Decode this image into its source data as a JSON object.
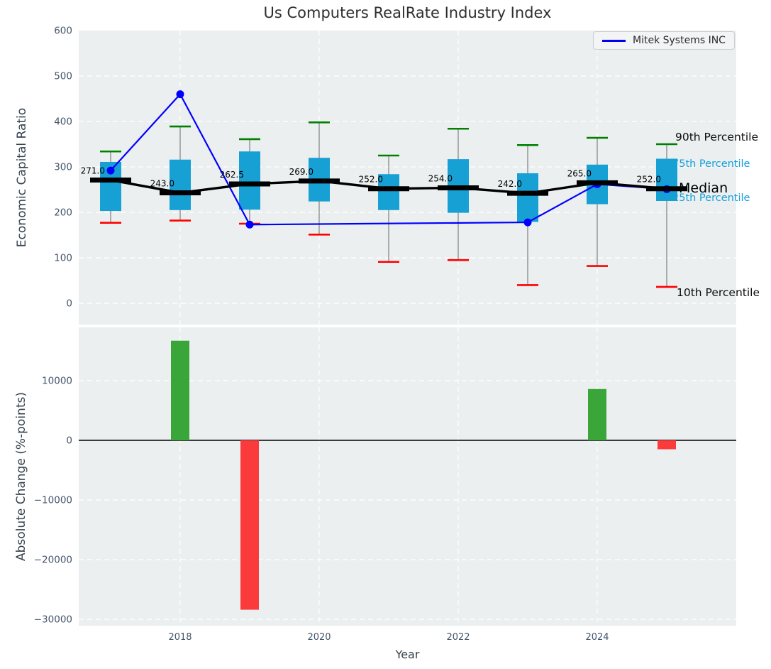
{
  "title": "Us Computers RealRate Industry Index",
  "legend": {
    "label": "Mitek Systems INC"
  },
  "axes": {
    "top": {
      "ylabel": "Economic Capital Ratio",
      "ytick_values": [
        600,
        500,
        400,
        300,
        200,
        100,
        0
      ],
      "ytick_labels": [
        "600",
        "500",
        "400",
        "300",
        "200",
        "100",
        "0"
      ]
    },
    "bottom": {
      "ylabel": "Absolute Change (%-points)",
      "ytick_values": [
        10000,
        0,
        -10000,
        -20000,
        -30000
      ],
      "ytick_labels": [
        "10000",
        "0",
        "−10000",
        "−20000",
        "−30000"
      ]
    },
    "x": {
      "label": "Year",
      "tick_values": [
        2018,
        2020,
        2022,
        2024
      ],
      "tick_labels": [
        "2018",
        "2020",
        "2022",
        "2024"
      ]
    }
  },
  "annotations": {
    "p90": "90th Percentile",
    "p75": "75th Percentile",
    "median": "Median",
    "p25": "25th Percentile",
    "p10": "10th Percentile"
  },
  "colors": {
    "box_fill": "#17a0d4",
    "whisker": "#888888",
    "cap_high": "#008000",
    "cap_low": "#ff0000",
    "median_line": "#000000",
    "company_line": "#0000ff",
    "bar_positive": "#3aa63a",
    "bar_negative": "#fb3b3b",
    "axes_bg": "#ebeff0",
    "grid": "#ffffff",
    "tick_text": "#44546a",
    "percentile_text": "#14a0dc",
    "zero_line": "#000000"
  },
  "chart_data": [
    {
      "type": "boxplot-line-combo",
      "title": "Us Computers RealRate Industry Index",
      "xlabel": "Year",
      "ylabel": "Economic Capital Ratio",
      "ylim": [
        -50,
        600
      ],
      "grid": true,
      "legend_position": "upper right",
      "years": [
        2017,
        2018,
        2019,
        2020,
        2021,
        2022,
        2023,
        2024,
        2025
      ],
      "p90": [
        334,
        389,
        361,
        398,
        325,
        384,
        348,
        364,
        350
      ],
      "p75": [
        311,
        316,
        334,
        320,
        284,
        317,
        286,
        305,
        318
      ],
      "median": [
        271.0,
        243.0,
        262.5,
        269.0,
        252.0,
        254.0,
        242.0,
        265.0,
        252.0
      ],
      "median_labels": [
        "271.0",
        "243.0",
        "262.5",
        "269.0",
        "252.0",
        "254.0",
        "242.0",
        "265.0",
        "252.0"
      ],
      "p25": [
        203,
        205,
        206,
        224,
        205,
        199,
        179,
        218,
        225
      ],
      "p10": [
        177,
        182,
        175,
        151,
        91,
        95,
        40,
        82,
        36
      ],
      "series": [
        {
          "name": "Mitek Systems INC",
          "x": [
            2017,
            2018,
            2019,
            2023,
            2024,
            2025
          ],
          "y": [
            292,
            460,
            173,
            178,
            262,
            251
          ]
        }
      ]
    },
    {
      "type": "bar",
      "ylabel": "Absolute Change (%-points)",
      "ylim": [
        -31200,
        18800
      ],
      "x": [
        2018,
        2019,
        2024,
        2025
      ],
      "values": [
        16700,
        -28400,
        8600,
        -1500
      ]
    }
  ]
}
